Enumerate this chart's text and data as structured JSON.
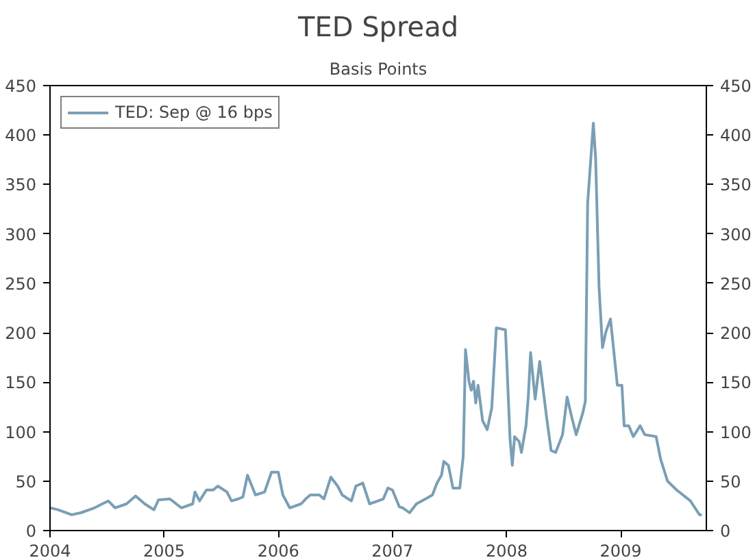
{
  "chart_data": {
    "type": "line",
    "title": "TED Spread",
    "subtitle": "Basis Points",
    "xlim": [
      2004,
      2009.75
    ],
    "xticks": [
      2004,
      2005,
      2006,
      2007,
      2008,
      2009
    ],
    "ylim": [
      0,
      450
    ],
    "yticks": [
      0,
      50,
      100,
      150,
      200,
      250,
      300,
      350,
      400,
      450
    ],
    "y2lim": [
      0,
      450
    ],
    "y2ticks": [
      0,
      50,
      100,
      150,
      200,
      250,
      300,
      350,
      400,
      450
    ],
    "grid": false,
    "legend": "top left",
    "marker": "none",
    "line_style": "solid",
    "series": [
      {
        "name": "TED: Sep @ 16 bps",
        "color": "#7a9fb5",
        "x": [
          2004.0,
          2004.07,
          2004.19,
          2004.27,
          2004.39,
          2004.51,
          2004.57,
          2004.67,
          2004.75,
          2004.83,
          2004.91,
          2004.95,
          2005.05,
          2005.15,
          2005.25,
          2005.27,
          2005.31,
          2005.37,
          2005.43,
          2005.47,
          2005.55,
          2005.59,
          2005.65,
          2005.69,
          2005.73,
          2005.8,
          2005.88,
          2005.94,
          2006.0,
          2006.04,
          2006.1,
          2006.2,
          2006.24,
          2006.28,
          2006.36,
          2006.4,
          2006.46,
          2006.52,
          2006.56,
          2006.64,
          2006.68,
          2006.74,
          2006.8,
          2006.92,
          2006.96,
          2007.0,
          2007.06,
          2007.09,
          2007.15,
          2007.21,
          2007.29,
          2007.35,
          2007.39,
          2007.43,
          2007.45,
          2007.49,
          2007.53,
          2007.59,
          2007.62,
          2007.64,
          2007.67,
          2007.69,
          2007.71,
          2007.73,
          2007.75,
          2007.79,
          2007.83,
          2007.87,
          2007.91,
          2007.99,
          2008.03,
          2008.05,
          2008.07,
          2008.11,
          2008.13,
          2008.17,
          2008.19,
          2008.21,
          2008.25,
          2008.29,
          2008.35,
          2008.39,
          2008.43,
          2008.49,
          2008.53,
          2008.57,
          2008.61,
          2008.67,
          2008.69,
          2008.71,
          2008.76,
          2008.78,
          2008.81,
          2008.84,
          2008.87,
          2008.91,
          2008.97,
          2009.01,
          2009.03,
          2009.07,
          2009.11,
          2009.17,
          2009.21,
          2009.31,
          2009.35,
          2009.41,
          2009.49,
          2009.61,
          2009.69,
          2009.71
        ],
        "values": [
          23,
          21,
          16,
          18,
          23,
          30,
          23,
          27,
          35,
          27,
          21,
          31,
          32,
          23,
          27,
          39,
          30,
          41,
          41,
          45,
          39,
          30,
          32,
          34,
          56,
          36,
          39,
          59,
          59,
          36,
          23,
          27,
          32,
          36,
          36,
          32,
          54,
          45,
          36,
          30,
          45,
          48,
          27,
          32,
          43,
          41,
          24,
          23,
          18,
          27,
          32,
          36,
          48,
          56,
          70,
          66,
          43,
          43,
          75,
          183,
          151,
          142,
          151,
          129,
          147,
          111,
          102,
          124,
          205,
          203,
          93,
          66,
          95,
          90,
          79,
          106,
          135,
          180,
          133,
          171,
          115,
          81,
          79,
          97,
          135,
          115,
          97,
          120,
          131,
          331,
          412,
          376,
          246,
          185,
          201,
          214,
          147,
          147,
          106,
          106,
          95,
          106,
          97,
          95,
          72,
          50,
          41,
          30,
          16,
          16
        ]
      }
    ]
  }
}
